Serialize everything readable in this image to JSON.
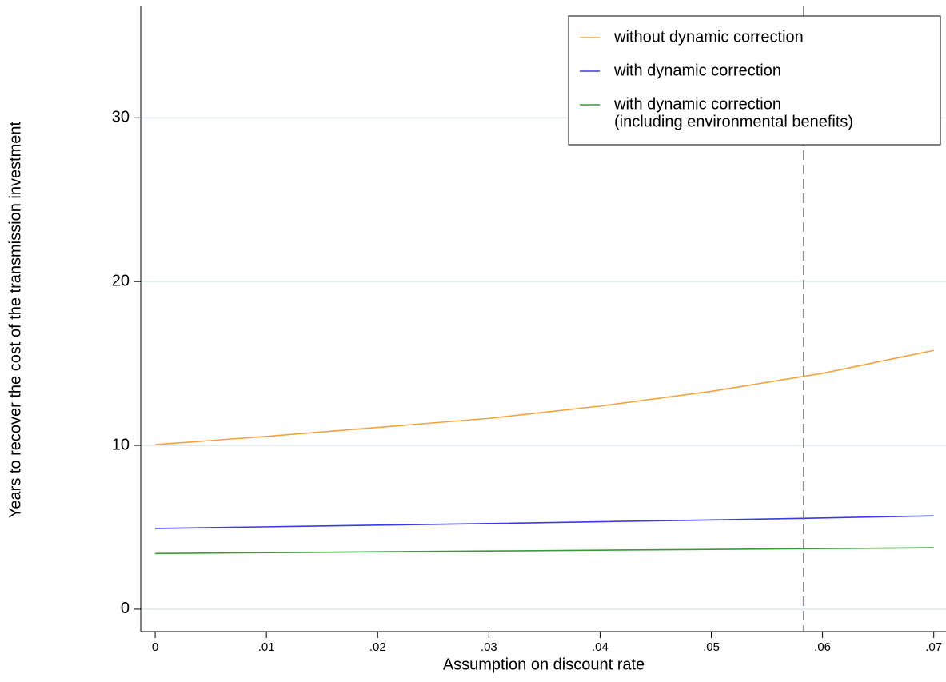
{
  "chart_data": {
    "type": "line",
    "x_label": "Assumption on discount rate",
    "y_label": "Years to recover the cost of the transmission investment",
    "x": [
      0,
      0.01,
      0.02,
      0.03,
      0.04,
      0.05,
      0.06,
      0.07
    ],
    "series": [
      {
        "name": [
          "without dynamic correction"
        ],
        "color": "#f5a23a",
        "values": [
          10.05,
          10.55,
          11.1,
          11.65,
          12.4,
          13.3,
          14.4,
          15.8
        ]
      },
      {
        "name": [
          "with dynamic correction"
        ],
        "color": "#3a3ae8",
        "values": [
          4.93,
          5.03,
          5.13,
          5.23,
          5.34,
          5.45,
          5.57,
          5.7
        ]
      },
      {
        "name": [
          "with dynamic correction",
          "(including environmental benefits)"
        ],
        "color": "#3a9a3a",
        "values": [
          3.4,
          3.45,
          3.5,
          3.55,
          3.6,
          3.65,
          3.7,
          3.75
        ]
      }
    ],
    "vline": 0.0583,
    "xlim": [
      -0.0013,
      0.0711
    ],
    "ylim": [
      -1.37,
      36.8
    ],
    "xticks": [
      0,
      {
        "value": 0.01,
        "label": ".01"
      },
      {
        "value": 0.02,
        "label": ".02"
      },
      {
        "value": 0.03,
        "label": ".03"
      },
      {
        "value": 0.04,
        "label": ".04"
      },
      {
        "value": 0.05,
        "label": ".05"
      },
      {
        "value": 0.06,
        "label": ".06"
      },
      {
        "value": 0.07,
        "label": ".07"
      }
    ],
    "yticks": [
      0,
      10,
      20,
      30
    ],
    "grid": true,
    "legend": "top-right"
  }
}
